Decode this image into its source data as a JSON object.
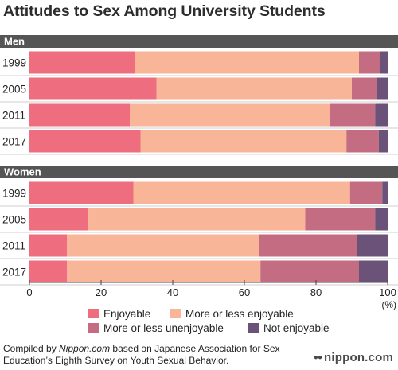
{
  "chart_data": {
    "type": "bar",
    "stacked": true,
    "orientation": "horizontal",
    "title": "Attitudes to Sex Among University Students",
    "xlim": [
      0,
      100
    ],
    "xticks": [
      "0",
      "20",
      "40",
      "60",
      "80",
      "100"
    ],
    "xunit": "(%)",
    "grid": false,
    "legend_position": "bottom",
    "series_names": [
      "Enjoyable",
      "More or less enjoyable",
      "More or less unenjoyable",
      "Not enjoyable"
    ],
    "colors": [
      "#ee6e7f",
      "#f8b597",
      "#c46c82",
      "#6b5279"
    ],
    "groups": [
      {
        "label": "Men",
        "rows": [
          {
            "year": "1999",
            "values": [
              29.5,
              62.5,
              6.0,
              2.0
            ]
          },
          {
            "year": "2005",
            "values": [
              35.5,
              54.5,
              7.0,
              3.0
            ]
          },
          {
            "year": "2011",
            "values": [
              28.0,
              56.0,
              12.5,
              3.5
            ]
          },
          {
            "year": "2017",
            "values": [
              31.0,
              57.5,
              9.0,
              2.5
            ]
          }
        ]
      },
      {
        "label": "Women",
        "rows": [
          {
            "year": "1999",
            "values": [
              29.0,
              60.5,
              9.0,
              1.5
            ]
          },
          {
            "year": "2005",
            "values": [
              16.5,
              60.5,
              19.5,
              3.5
            ]
          },
          {
            "year": "2011",
            "values": [
              10.5,
              53.5,
              27.5,
              8.5
            ]
          },
          {
            "year": "2017",
            "values": [
              10.5,
              54.0,
              27.5,
              8.0
            ]
          }
        ]
      }
    ]
  },
  "footnote": {
    "prefix": "Compiled by ",
    "source": "Nippon.com",
    "suffix": " based on Japanese Association for Sex Education’s Eighth Survey on Youth Sexual Behavior."
  },
  "logo": "nippon.com"
}
